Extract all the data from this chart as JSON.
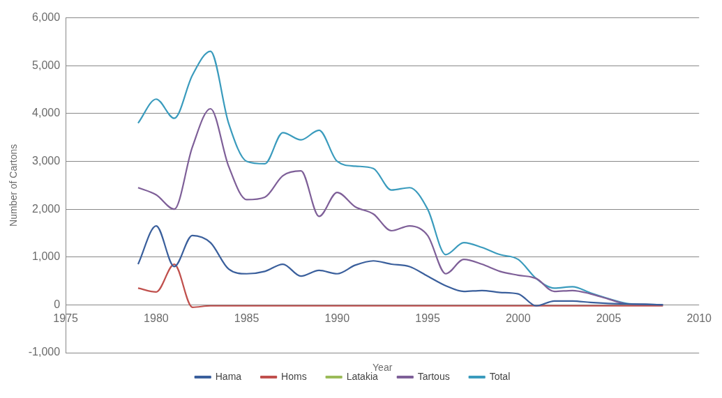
{
  "chart_data": {
    "type": "line",
    "xlabel": "Year",
    "ylabel": "Number of Cartons",
    "x": [
      1979,
      1980,
      1981,
      1982,
      1983,
      1984,
      1985,
      1986,
      1987,
      1988,
      1989,
      1990,
      1991,
      1992,
      1993,
      1994,
      1995,
      1996,
      1997,
      1998,
      1999,
      2000,
      2001,
      2002,
      2003,
      2004,
      2005,
      2006,
      2007,
      2008
    ],
    "series": [
      {
        "name": "Hama",
        "color": "#3a5f9c",
        "values": [
          850,
          1650,
          800,
          1450,
          1300,
          750,
          650,
          700,
          850,
          600,
          720,
          650,
          830,
          920,
          850,
          800,
          600,
          400,
          280,
          300,
          260,
          230,
          -20,
          80,
          80,
          50,
          30,
          20,
          10,
          0
        ]
      },
      {
        "name": "Homs",
        "color": "#c0504d",
        "values": [
          350,
          270,
          850,
          -50,
          -20,
          -20,
          -20,
          -20,
          -20,
          -20,
          -20,
          -20,
          -20,
          -20,
          -20,
          -20,
          -20,
          -20,
          -20,
          -20,
          -20,
          -20,
          -20,
          -20,
          -20,
          -20,
          -20,
          -20,
          -20,
          -20
        ]
      },
      {
        "name": "Latakia",
        "color": "#9bbb59",
        "values": [
          null,
          null,
          null,
          null,
          null,
          null,
          null,
          null,
          null,
          null,
          null,
          null,
          null,
          null,
          null,
          null,
          null,
          null,
          null,
          null,
          null,
          null,
          null,
          null,
          null,
          null,
          null,
          null,
          null,
          null
        ]
      },
      {
        "name": "Tartous",
        "color": "#7e5f98",
        "values": [
          2450,
          2300,
          2000,
          3300,
          4100,
          2900,
          2200,
          2250,
          2700,
          2800,
          1850,
          2350,
          2050,
          1900,
          1550,
          1650,
          1450,
          650,
          950,
          850,
          700,
          620,
          550,
          280,
          300,
          230,
          120,
          20,
          10,
          0
        ]
      },
      {
        "name": "Total",
        "color": "#3a9bbd",
        "values": [
          3800,
          4300,
          3900,
          4800,
          5300,
          3800,
          3000,
          2950,
          3600,
          3450,
          3650,
          3000,
          2900,
          2850,
          2400,
          2450,
          2000,
          1050,
          1300,
          1200,
          1050,
          950,
          550,
          350,
          380,
          250,
          130,
          30,
          10,
          0
        ]
      }
    ],
    "xlim": [
      1975,
      2010
    ],
    "xticks": [
      1975,
      1980,
      1985,
      1990,
      1995,
      2000,
      2005,
      2010
    ],
    "ylim": [
      -1000,
      6000
    ],
    "yticks": [
      {
        "value": -1000,
        "label": "-1,000"
      },
      0,
      {
        "value": 1000,
        "label": "1,000"
      },
      {
        "value": 2000,
        "label": "2,000"
      },
      {
        "value": 3000,
        "label": "3,000"
      },
      {
        "value": 4000,
        "label": "4,000"
      },
      {
        "value": 5000,
        "label": "5,000"
      },
      {
        "value": 6000,
        "label": "6,000"
      }
    ],
    "grid": "y",
    "legend": "bottom",
    "marker": "none",
    "line_style": "solid"
  }
}
